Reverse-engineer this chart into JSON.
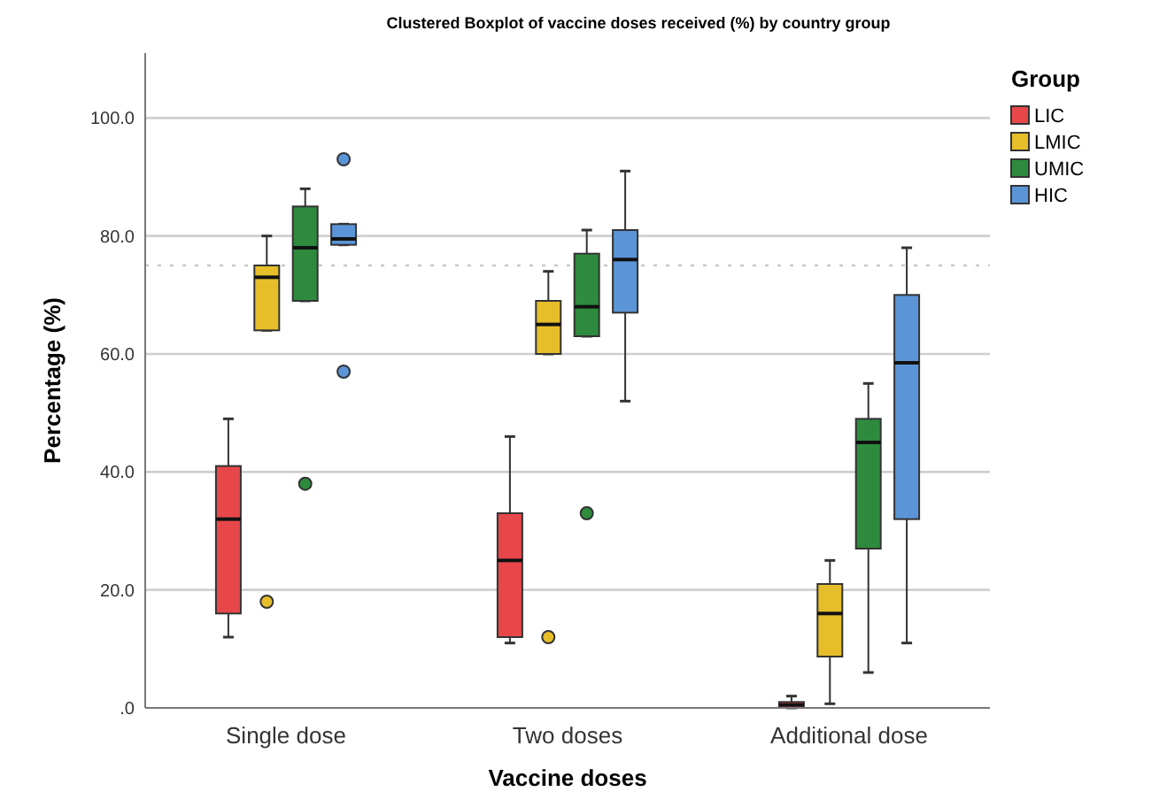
{
  "chart_data": {
    "type": "box",
    "title": "Clustered Boxplot of vaccine doses received (%) by country group",
    "xlabel": "Vaccine doses",
    "ylabel": "Percentage (%)",
    "legend_title": "Group",
    "legend": "top right",
    "grid": "y",
    "categories": [
      "Single dose",
      "Two doses",
      "Additional dose"
    ],
    "ylim": [
      0,
      111
    ],
    "yticks": [
      {
        "value": 0,
        "label": ".0"
      },
      {
        "value": 20,
        "label": "20.0"
      },
      {
        "value": 40,
        "label": "40.0"
      },
      {
        "value": 60,
        "label": "60.0"
      },
      {
        "value": 80,
        "label": "80.0"
      },
      {
        "value": 100,
        "label": "100.0"
      }
    ],
    "ref_lines": [
      {
        "axis": "y",
        "value": 75,
        "color": "#c8c8c8",
        "line_style": "dotted"
      }
    ],
    "series": [
      {
        "name": "LIC",
        "color": "#e8474a",
        "boxes": [
          {
            "low": 12,
            "q1": 16,
            "median": 32,
            "q3": 41,
            "high": 49
          },
          {
            "low": 11,
            "q1": 12,
            "median": 25,
            "q3": 33,
            "high": 46
          },
          {
            "low": 0,
            "q1": 0,
            "median": 0.5,
            "q3": 1,
            "high": 2
          }
        ]
      },
      {
        "name": "LMIC",
        "color": "#e6be2a",
        "boxes": [
          {
            "low": 64,
            "q1": 64,
            "median": 73,
            "q3": 75,
            "high": 80,
            "outliers": [
              18
            ]
          },
          {
            "low": 60,
            "q1": 60,
            "median": 65,
            "q3": 69,
            "high": 74,
            "outliers": [
              12
            ]
          },
          {
            "low": 0.7,
            "q1": 8.7,
            "median": 16,
            "q3": 21,
            "high": 25
          }
        ]
      },
      {
        "name": "UMIC",
        "color": "#2e8b3e",
        "boxes": [
          {
            "low": 69,
            "q1": 69,
            "median": 78,
            "q3": 85,
            "high": 88,
            "outliers": [
              38
            ]
          },
          {
            "low": 63,
            "q1": 63,
            "median": 68,
            "q3": 77,
            "high": 81,
            "outliers": [
              33
            ]
          },
          {
            "low": 6,
            "q1": 27,
            "median": 45,
            "q3": 49,
            "high": 55
          }
        ]
      },
      {
        "name": "HIC",
        "color": "#5b95d8",
        "boxes": [
          {
            "low": 78.5,
            "q1": 78.5,
            "median": 79.5,
            "q3": 82,
            "high": 82,
            "outliers": [
              93,
              57
            ]
          },
          {
            "low": 52,
            "q1": 67,
            "median": 76,
            "q3": 81,
            "high": 91
          },
          {
            "low": 11,
            "q1": 32,
            "median": 58.5,
            "q3": 70,
            "high": 78
          }
        ]
      }
    ]
  }
}
